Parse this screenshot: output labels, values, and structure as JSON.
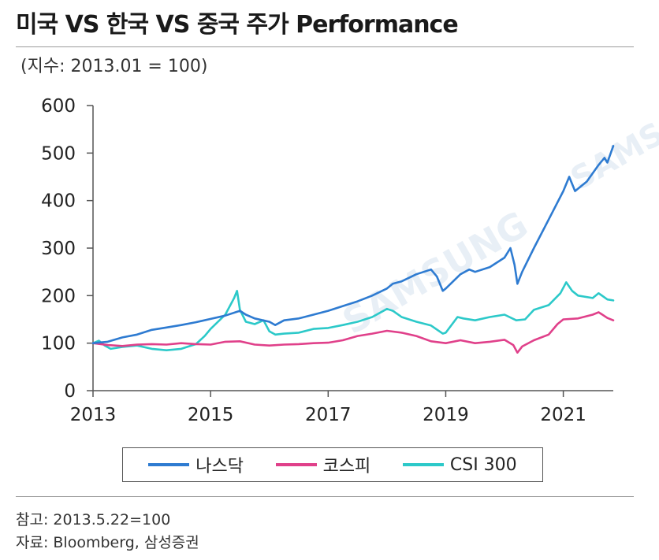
{
  "header": {
    "title": "미국 VS 한국 VS 중국 주가 Performance",
    "subtitle": "(지수: 2013.01 = 100)"
  },
  "watermark": {
    "text_main": "SAMSUNG",
    "text_corner": "SAMS"
  },
  "legend": {
    "items": [
      {
        "label": "나스닥",
        "color": "#2e7bd1"
      },
      {
        "label": "코스피",
        "color": "#e0408a"
      },
      {
        "label": "CSI 300",
        "color": "#2cc9c9"
      }
    ]
  },
  "footer": {
    "note": "참고: 2013.5.22=100",
    "source": "자료: Bloomberg, 삼성증권"
  },
  "chart_data": {
    "type": "line",
    "title": "미국 VS 한국 VS 중국 주가 Performance",
    "ylabel": "(지수: 2013.01 = 100)",
    "xlim": [
      2013,
      2021.85
    ],
    "ylim": [
      0,
      600
    ],
    "yticks": [
      0,
      100,
      200,
      300,
      400,
      500,
      600
    ],
    "xticks": [
      2013,
      2015,
      2017,
      2019,
      2021
    ],
    "grid": false,
    "legend_position": "bottom",
    "series": [
      {
        "name": "나스닥",
        "color": "#2e7bd1",
        "points": [
          [
            2013.0,
            100
          ],
          [
            2013.25,
            103
          ],
          [
            2013.5,
            112
          ],
          [
            2013.75,
            118
          ],
          [
            2014.0,
            128
          ],
          [
            2014.25,
            133
          ],
          [
            2014.5,
            138
          ],
          [
            2014.75,
            144
          ],
          [
            2015.0,
            151
          ],
          [
            2015.25,
            158
          ],
          [
            2015.5,
            168
          ],
          [
            2015.6,
            160
          ],
          [
            2015.75,
            152
          ],
          [
            2016.0,
            145
          ],
          [
            2016.1,
            138
          ],
          [
            2016.25,
            148
          ],
          [
            2016.5,
            152
          ],
          [
            2016.75,
            160
          ],
          [
            2017.0,
            168
          ],
          [
            2017.25,
            178
          ],
          [
            2017.5,
            188
          ],
          [
            2017.75,
            200
          ],
          [
            2018.0,
            215
          ],
          [
            2018.1,
            225
          ],
          [
            2018.25,
            230
          ],
          [
            2018.5,
            245
          ],
          [
            2018.75,
            255
          ],
          [
            2018.85,
            240
          ],
          [
            2018.95,
            210
          ],
          [
            2019.0,
            215
          ],
          [
            2019.25,
            245
          ],
          [
            2019.4,
            255
          ],
          [
            2019.5,
            250
          ],
          [
            2019.75,
            260
          ],
          [
            2020.0,
            280
          ],
          [
            2020.1,
            300
          ],
          [
            2020.17,
            265
          ],
          [
            2020.22,
            225
          ],
          [
            2020.3,
            250
          ],
          [
            2020.5,
            300
          ],
          [
            2020.75,
            360
          ],
          [
            2021.0,
            420
          ],
          [
            2021.1,
            450
          ],
          [
            2021.2,
            420
          ],
          [
            2021.4,
            440
          ],
          [
            2021.6,
            475
          ],
          [
            2021.7,
            490
          ],
          [
            2021.75,
            480
          ],
          [
            2021.85,
            515
          ]
        ]
      },
      {
        "name": "코스피",
        "color": "#e0408a",
        "points": [
          [
            2013.0,
            100
          ],
          [
            2013.25,
            96
          ],
          [
            2013.5,
            94
          ],
          [
            2013.75,
            97
          ],
          [
            2014.0,
            98
          ],
          [
            2014.25,
            97
          ],
          [
            2014.5,
            100
          ],
          [
            2014.75,
            98
          ],
          [
            2015.0,
            97
          ],
          [
            2015.25,
            103
          ],
          [
            2015.5,
            104
          ],
          [
            2015.75,
            97
          ],
          [
            2016.0,
            95
          ],
          [
            2016.25,
            97
          ],
          [
            2016.5,
            98
          ],
          [
            2016.75,
            100
          ],
          [
            2017.0,
            101
          ],
          [
            2017.25,
            106
          ],
          [
            2017.5,
            115
          ],
          [
            2017.75,
            120
          ],
          [
            2018.0,
            126
          ],
          [
            2018.25,
            122
          ],
          [
            2018.5,
            115
          ],
          [
            2018.75,
            104
          ],
          [
            2019.0,
            100
          ],
          [
            2019.25,
            106
          ],
          [
            2019.5,
            100
          ],
          [
            2019.75,
            103
          ],
          [
            2020.0,
            107
          ],
          [
            2020.15,
            96
          ],
          [
            2020.22,
            80
          ],
          [
            2020.3,
            93
          ],
          [
            2020.5,
            106
          ],
          [
            2020.75,
            118
          ],
          [
            2020.9,
            140
          ],
          [
            2021.0,
            150
          ],
          [
            2021.25,
            152
          ],
          [
            2021.5,
            160
          ],
          [
            2021.6,
            165
          ],
          [
            2021.75,
            153
          ],
          [
            2021.85,
            148
          ]
        ]
      },
      {
        "name": "CSI 300",
        "color": "#2cc9c9",
        "points": [
          [
            2013.0,
            100
          ],
          [
            2013.1,
            105
          ],
          [
            2013.2,
            95
          ],
          [
            2013.3,
            88
          ],
          [
            2013.5,
            92
          ],
          [
            2013.75,
            95
          ],
          [
            2014.0,
            88
          ],
          [
            2014.25,
            85
          ],
          [
            2014.5,
            88
          ],
          [
            2014.75,
            98
          ],
          [
            2014.9,
            115
          ],
          [
            2015.0,
            130
          ],
          [
            2015.25,
            160
          ],
          [
            2015.4,
            195
          ],
          [
            2015.45,
            210
          ],
          [
            2015.5,
            170
          ],
          [
            2015.6,
            145
          ],
          [
            2015.75,
            140
          ],
          [
            2015.9,
            148
          ],
          [
            2016.0,
            125
          ],
          [
            2016.1,
            118
          ],
          [
            2016.25,
            120
          ],
          [
            2016.5,
            122
          ],
          [
            2016.75,
            130
          ],
          [
            2017.0,
            132
          ],
          [
            2017.25,
            138
          ],
          [
            2017.5,
            145
          ],
          [
            2017.75,
            155
          ],
          [
            2018.0,
            172
          ],
          [
            2018.1,
            168
          ],
          [
            2018.25,
            155
          ],
          [
            2018.5,
            145
          ],
          [
            2018.75,
            137
          ],
          [
            2018.95,
            120
          ],
          [
            2019.0,
            122
          ],
          [
            2019.2,
            155
          ],
          [
            2019.3,
            152
          ],
          [
            2019.5,
            148
          ],
          [
            2019.75,
            155
          ],
          [
            2020.0,
            160
          ],
          [
            2020.2,
            148
          ],
          [
            2020.35,
            150
          ],
          [
            2020.5,
            170
          ],
          [
            2020.75,
            180
          ],
          [
            2020.95,
            205
          ],
          [
            2021.05,
            228
          ],
          [
            2021.15,
            210
          ],
          [
            2021.25,
            200
          ],
          [
            2021.5,
            195
          ],
          [
            2021.6,
            205
          ],
          [
            2021.75,
            192
          ],
          [
            2021.85,
            190
          ]
        ]
      }
    ]
  }
}
